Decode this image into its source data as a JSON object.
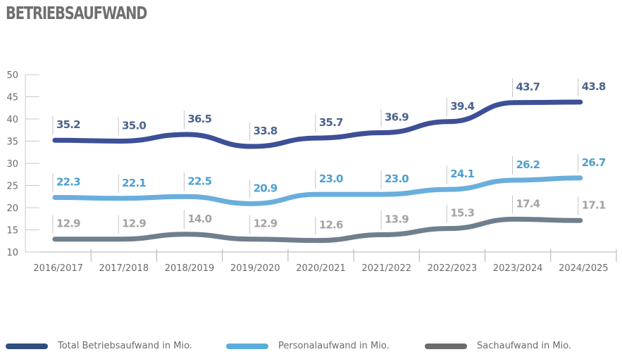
{
  "title": "BETRIEBSAUFWAND",
  "chart_data": {
    "type": "line",
    "title": "BETRIEBSAUFWAND",
    "xlabel": "",
    "ylabel": "",
    "ylim": [
      10,
      50
    ],
    "yticks": [
      "10",
      "15",
      "20",
      "25",
      "30",
      "35",
      "40",
      "45",
      "50"
    ],
    "categories": [
      "2016/2017",
      "2017/2018",
      "2018/2019",
      "2019/2020",
      "2020/2021",
      "2021/2022",
      "2022/2023",
      "2023/2024",
      "2024/2025"
    ],
    "series": [
      {
        "name": "Total Betriebsaufwand in Mio.",
        "color": "#3d4f97",
        "label_color": "#4b638e",
        "values": [
          35.2,
          35.0,
          36.5,
          33.8,
          35.7,
          36.9,
          39.4,
          43.7,
          43.8
        ],
        "labels": [
          "35.2",
          "35.0",
          "36.5",
          "33.8",
          "35.7",
          "36.9",
          "39.4",
          "43.7",
          "43.8"
        ]
      },
      {
        "name": "Personalaufwand in Mio.",
        "color": "#6aaedd",
        "label_color": "#4e9fcf",
        "values": [
          22.3,
          22.1,
          22.5,
          20.9,
          23.0,
          23.0,
          24.1,
          26.2,
          26.7
        ],
        "labels": [
          "22.3",
          "22.1",
          "22.5",
          "20.9",
          "23.0",
          "23.0",
          "24.1",
          "26.2",
          "26.7"
        ]
      },
      {
        "name": "Sachaufwand in Mio.",
        "color": "#6f7f8e",
        "label_color": "#a3a3a3",
        "values": [
          12.9,
          12.9,
          14.0,
          12.9,
          12.6,
          13.9,
          15.3,
          17.4,
          17.1
        ],
        "labels": [
          "12.9",
          "12.9",
          "14.0",
          "12.9",
          "12.6",
          "13.9",
          "15.3",
          "17.4",
          "17.1"
        ]
      }
    ],
    "legend": {
      "position": "bottom",
      "items": [
        {
          "label": "Total Betriebsaufwand in Mio.",
          "color": "#2f4e7e"
        },
        {
          "label": "Personalaufwand in Mio.",
          "color": "#5aacdf"
        },
        {
          "label": "Sachaufwand in Mio.",
          "color": "#6b6b6b"
        }
      ]
    },
    "grid": false
  }
}
